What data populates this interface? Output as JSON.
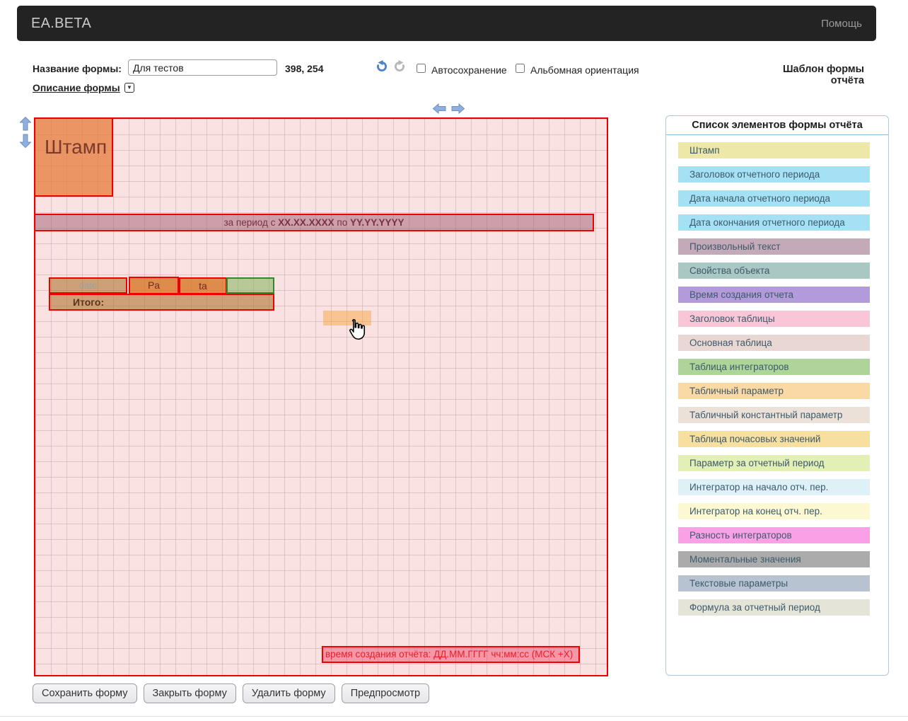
{
  "app": {
    "brand": "EA.BETA",
    "help_label": "Помощь"
  },
  "toolbar": {
    "form_name_label": "Название формы:",
    "form_name_value": "Для тестов",
    "coords": "398, 254",
    "autosave_label": "Автосохранение",
    "landscape_label": "Альбомная ориентация",
    "template_title": "Шаблон формы отчёта",
    "description_link": "Описание формы",
    "description_toggle_glyph": "▼"
  },
  "canvas": {
    "stamp_label": "Штамп",
    "period": {
      "prefix": "за период с ",
      "start": "XX.XX.XXXX",
      "mid": " по ",
      "end": "YY.YY.YYYY"
    },
    "table": {
      "date": "date",
      "pa": "Pa",
      "ta": "ta",
      "total": "Итого:"
    },
    "creation_time": "время создания отчёта: ДД.ММ.ГГГГ чч:мм:сс (МСК +Х)",
    "colors": {
      "border_red": "#ee0000",
      "stamp_bg": "rgba(231,126,64,0.78)",
      "period_bg": "rgba(158,92,115,0.50)",
      "tan_bg": "rgba(176,119,53,0.62)",
      "orange_bg": "rgba(213,110,25,0.75)",
      "green_bg": "rgba(130,180,90,0.55)",
      "hover_bg": "rgba(245,166,66,0.50)",
      "time_bg": "rgba(233,63,94,0.45)"
    }
  },
  "sidebar": {
    "title": "Список элементов формы отчёта",
    "items": [
      {
        "label": "Штамп",
        "color": "#ede8a8"
      },
      {
        "label": "Заголовок отчетного периода",
        "color": "#a5e1f5"
      },
      {
        "label": "Дата начала отчетного периода",
        "color": "#a5e1f5"
      },
      {
        "label": "Дата окончания отчетного периода",
        "color": "#a5e1f5"
      },
      {
        "label": "Произвольный текст",
        "color": "#c4a9b8"
      },
      {
        "label": "Свойства объекта",
        "color": "#a9c7c3"
      },
      {
        "label": "Время создания отчета",
        "color": "#b39bdb"
      },
      {
        "label": "Заголовок таблицы",
        "color": "#f9c6d8"
      },
      {
        "label": "Основная таблица",
        "color": "#e9d7d3"
      },
      {
        "label": "Таблица интеграторов",
        "color": "#afd49a"
      },
      {
        "label": "Табличный параметр",
        "color": "#fbd9a4"
      },
      {
        "label": "Табличный константный параметр",
        "color": "#ece1d8"
      },
      {
        "label": "Таблица почасовых значений",
        "color": "#f6df9f"
      },
      {
        "label": "Параметр за отчетный период",
        "color": "#e2efb5"
      },
      {
        "label": "Интегратор на начало отч. пер.",
        "color": "#ddf1f7"
      },
      {
        "label": "Интегратор на конец отч. пер.",
        "color": "#fcf9d2"
      },
      {
        "label": "Разность интеграторов",
        "color": "#f9a0e6"
      },
      {
        "label": "Моментальные значения",
        "color": "#ababab"
      },
      {
        "label": "Текстовые параметры",
        "color": "#b7c3d1"
      },
      {
        "label": "Формула за отчетный период",
        "color": "#e4e4d8"
      }
    ]
  },
  "footer": {
    "buttons": [
      {
        "name": "save-form-button",
        "label": "Сохранить форму"
      },
      {
        "name": "close-form-button",
        "label": "Закрыть форму"
      },
      {
        "name": "delete-form-button",
        "label": "Удалить форму"
      },
      {
        "name": "preview-button",
        "label": "Предпросмотр"
      }
    ]
  }
}
